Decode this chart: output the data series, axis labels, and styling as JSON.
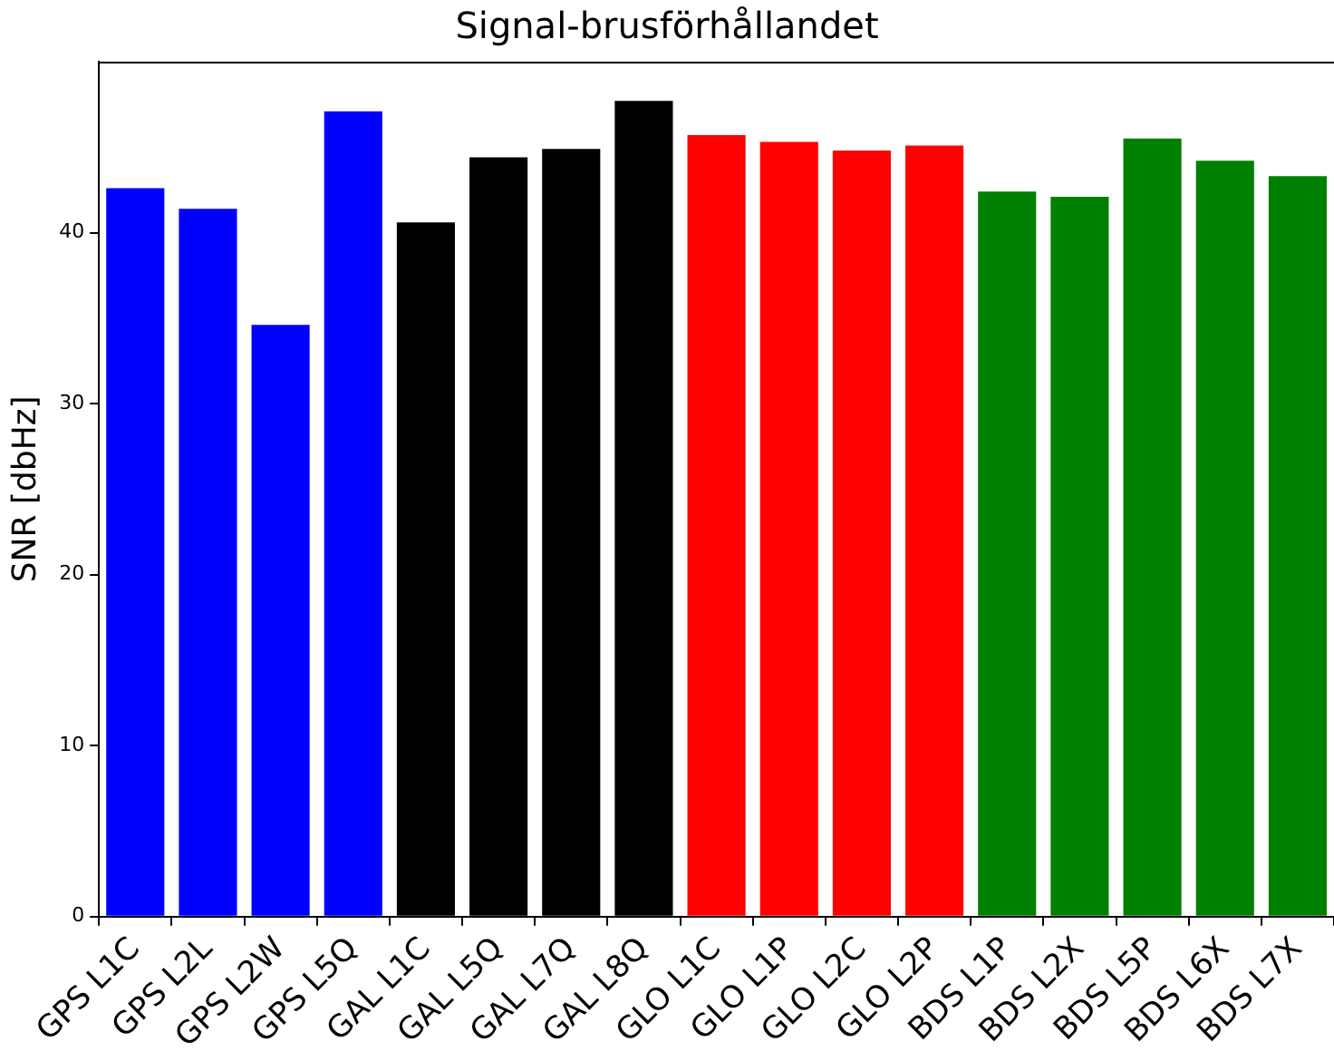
{
  "chart_data": {
    "type": "bar",
    "title": "Signal-brusförhållandet",
    "ylabel": "SNR [dbHz]",
    "categories": [
      "GPS L1C",
      "GPS L2L",
      "GPS L2W",
      "GPS L5Q",
      "GAL L1C",
      "GAL L5Q",
      "GAL L7Q",
      "GAL L8Q",
      "GLO L1C",
      "GLO L1P",
      "GLO L2C",
      "GLO L2P",
      "BDS L1P",
      "BDS L2X",
      "BDS L5P",
      "BDS L6X",
      "BDS L7X"
    ],
    "values": [
      42.6,
      41.4,
      34.6,
      47.1,
      40.6,
      44.4,
      44.9,
      47.7,
      45.7,
      45.3,
      44.8,
      45.1,
      42.4,
      42.1,
      45.5,
      44.2,
      43.3
    ],
    "colors": [
      "#0000ff",
      "#0000ff",
      "#0000ff",
      "#0000ff",
      "#000000",
      "#000000",
      "#000000",
      "#000000",
      "#ff0000",
      "#ff0000",
      "#ff0000",
      "#ff0000",
      "#008000",
      "#008000",
      "#008000",
      "#008000",
      "#008000"
    ],
    "ylim": [
      0,
      50
    ],
    "yticks": [
      0,
      10,
      20,
      30,
      40
    ],
    "grid": false,
    "legend": false
  }
}
